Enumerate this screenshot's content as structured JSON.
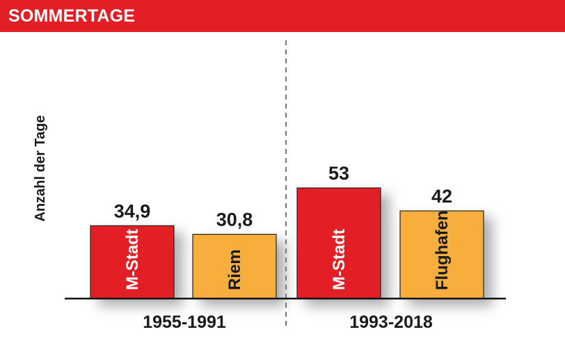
{
  "header": {
    "title": "SOMMERTAGE"
  },
  "colors": {
    "header_bg": "#e31e24",
    "m_stadt": "#e31e24",
    "comparison": "#f7ae3d",
    "text": "#1a1a1a"
  },
  "chart_data": {
    "type": "bar",
    "title": "SOMMERTAGE",
    "ylabel": "Anzahl der Tage",
    "ylim": [
      0,
      60
    ],
    "grid": false,
    "legend": "none",
    "groups": [
      {
        "label": "1955-1991",
        "bars": [
          {
            "label": "M-Stadt",
            "value": 34.9,
            "value_label": "34,9",
            "color": "#e31e24"
          },
          {
            "label": "Riem",
            "value": 30.8,
            "value_label": "30,8",
            "color": "#f7ae3d"
          }
        ]
      },
      {
        "label": "1993-2018",
        "bars": [
          {
            "label": "M-Stadt",
            "value": 53,
            "value_label": "53",
            "color": "#e31e24"
          },
          {
            "label": "Flughafen",
            "value": 42,
            "value_label": "42",
            "color": "#f7ae3d"
          }
        ]
      }
    ]
  }
}
